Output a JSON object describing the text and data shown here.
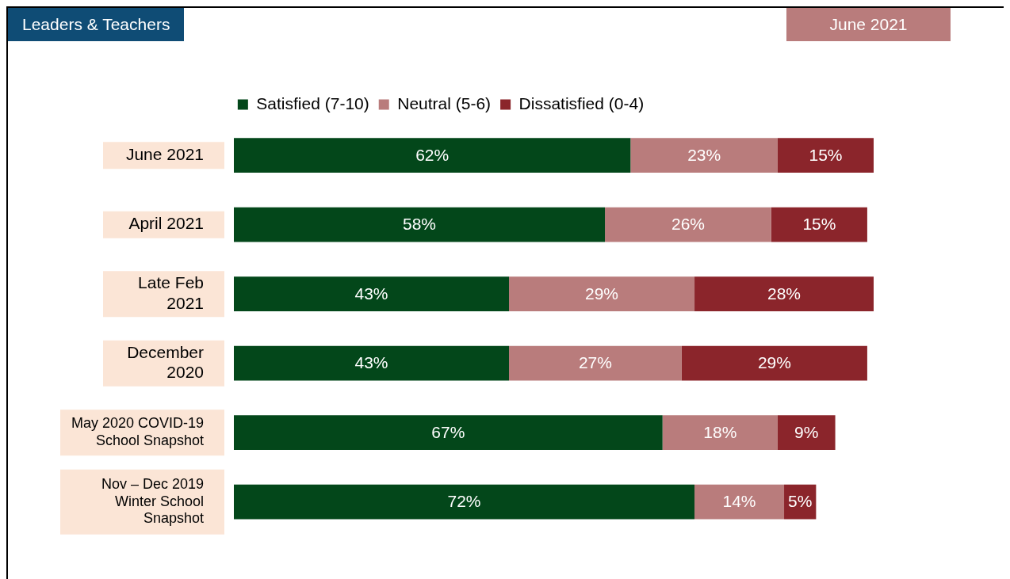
{
  "chart_data": {
    "type": "bar",
    "orientation": "horizontal",
    "stacked": true,
    "title": "Leaders & Teachers",
    "subtitle": "June 2021",
    "categories": [
      "June 2021",
      "April 2021",
      "Late Feb 2021",
      "December 2020",
      "May 2020 COVID-19 School Snapshot",
      "Nov – Dec 2019 Winter School Snapshot"
    ],
    "series": [
      {
        "name": "Satisfied (7-10)",
        "color": "#03471a",
        "values": [
          62,
          58,
          43,
          43,
          67,
          72
        ],
        "value_labels": [
          "62%",
          "58%",
          "43%",
          "43%",
          "67%",
          "72%"
        ]
      },
      {
        "name": "Neutral (5-6)",
        "color": "#b97c7c",
        "values": [
          23,
          26,
          29,
          27,
          18,
          14
        ],
        "value_labels": [
          "23%",
          "26%",
          "29%",
          "27%",
          "18%",
          "14%"
        ]
      },
      {
        "name": "Dissatisfied (0-4)",
        "color": "#8b252b",
        "values": [
          15,
          15,
          28,
          29,
          9,
          5
        ],
        "value_labels": [
          "15%",
          "15%",
          "28%",
          "29%",
          "9%",
          "5%"
        ]
      }
    ],
    "legend": "top"
  }
}
